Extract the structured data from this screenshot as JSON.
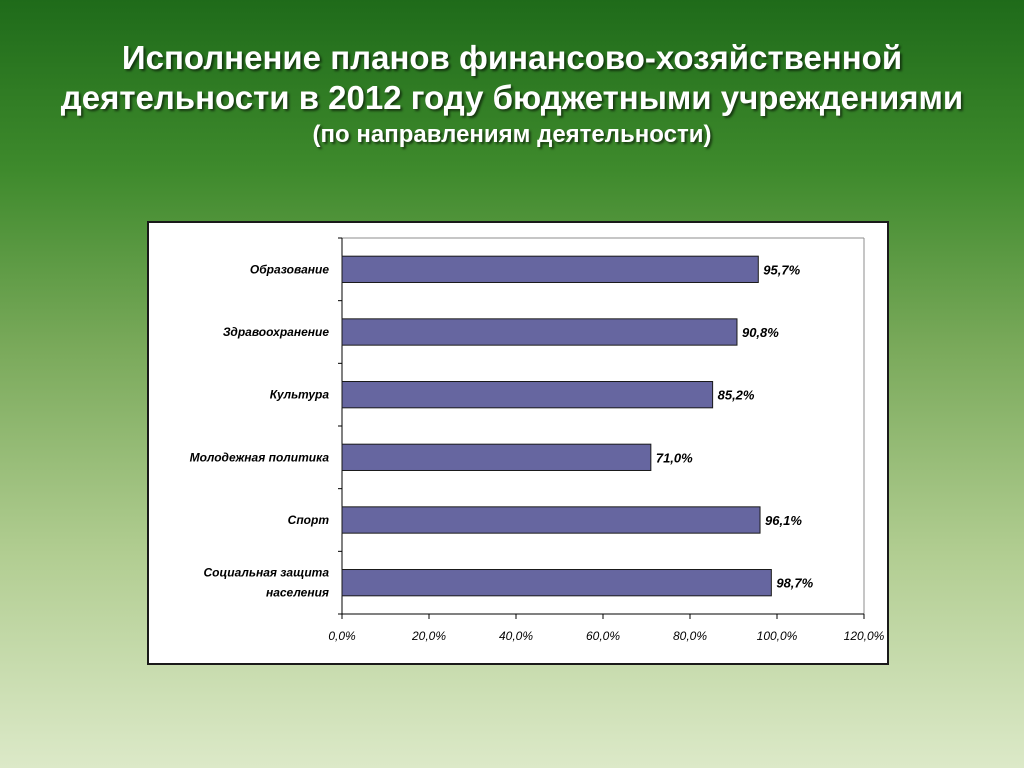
{
  "slide": {
    "title_line1": "Исполнение планов финансово-хозяйственной",
    "title_line2": "деятельности в 2012 году бюджетными учреждениями",
    "subtitle": "(по направлениям деятельности)"
  },
  "chart_data": {
    "type": "bar",
    "orientation": "horizontal",
    "categories": [
      [
        "Образование"
      ],
      [
        "Здравоохранение"
      ],
      [
        "Культура"
      ],
      [
        "Молодежная политика"
      ],
      [
        "Спорт"
      ],
      [
        "Социальная защита",
        "населения"
      ]
    ],
    "values": [
      95.7,
      90.8,
      85.2,
      71.0,
      96.1,
      98.7
    ],
    "value_labels": [
      "95,7%",
      "90,8%",
      "85,2%",
      "71,0%",
      "96,1%",
      "98,7%"
    ],
    "xlim": [
      0,
      120
    ],
    "xticks": [
      0,
      20,
      40,
      60,
      80,
      100,
      120
    ],
    "xtick_labels": [
      "0,0%",
      "20,0%",
      "40,0%",
      "60,0%",
      "80,0%",
      "100,0%",
      "120,0%"
    ],
    "grid": false,
    "legend": "none",
    "bar_color": "#6666a0",
    "bar_edge_color": "#1a1a1a"
  }
}
